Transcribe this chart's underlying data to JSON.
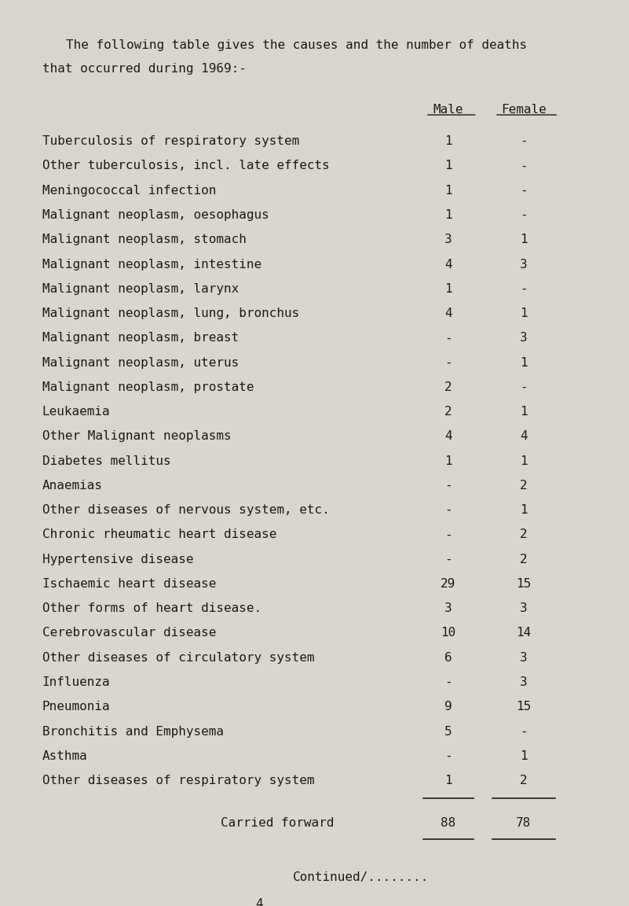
{
  "title_line1": "The following table gives the causes and the number of deaths",
  "title_line2": "that occurred during 1969:-",
  "col_header_male": "Male",
  "col_header_female": "Female",
  "rows": [
    {
      "cause": "Tuberculosis of respiratory system",
      "male": "1",
      "female": "-"
    },
    {
      "cause": "Other tuberculosis, incl. late effects",
      "male": "1",
      "female": "-"
    },
    {
      "cause": "Meningococcal infection",
      "male": "1",
      "female": "-"
    },
    {
      "cause": "Malignant neoplasm, oesophagus",
      "male": "1",
      "female": "-"
    },
    {
      "cause": "Malignant neoplasm, stomach",
      "male": "3",
      "female": "1"
    },
    {
      "cause": "Malignant neoplasm, intestine",
      "male": "4",
      "female": "3"
    },
    {
      "cause": "Malignant neoplasm, larynx",
      "male": "1",
      "female": "-"
    },
    {
      "cause": "Malignant neoplasm, lung, bronchus",
      "male": "4",
      "female": "1"
    },
    {
      "cause": "Malignant neoplasm, breast",
      "male": "-",
      "female": "3"
    },
    {
      "cause": "Malignant neoplasm, uterus",
      "male": "-",
      "female": "1"
    },
    {
      "cause": "Malignant neoplasm, prostate",
      "male": "2",
      "female": "-"
    },
    {
      "cause": "Leukaemia",
      "male": "2",
      "female": "1"
    },
    {
      "cause": "Other Malignant neoplasms",
      "male": "4",
      "female": "4"
    },
    {
      "cause": "Diabetes mellitus",
      "male": "1",
      "female": "1"
    },
    {
      "cause": "Anaemias",
      "male": "-",
      "female": "2"
    },
    {
      "cause": "Other diseases of nervous system, etc.",
      "male": "-",
      "female": "1"
    },
    {
      "cause": "Chronic rheumatic heart disease",
      "male": "-",
      "female": "2"
    },
    {
      "cause": "Hypertensive disease",
      "male": "-",
      "female": "2"
    },
    {
      "cause": "Ischaemic heart disease",
      "male": "29",
      "female": "15"
    },
    {
      "cause": "Other forms of heart disease.",
      "male": "3",
      "female": "3"
    },
    {
      "cause": "Cerebrovascular disease",
      "male": "10",
      "female": "14"
    },
    {
      "cause": "Other diseases of circulatory system",
      "male": "6",
      "female": "3"
    },
    {
      "cause": "Influenza",
      "male": "-",
      "female": "3"
    },
    {
      "cause": "Pneumonia",
      "male": "9",
      "female": "15"
    },
    {
      "cause": "Bronchitis and Emphysema",
      "male": "5",
      "female": "-"
    },
    {
      "cause": "Asthma",
      "male": "-",
      "female": "1"
    },
    {
      "cause": "Other diseases of respiratory system",
      "male": "1",
      "female": "2"
    }
  ],
  "total_label": "Carried forward",
  "total_male": "88",
  "total_female": "78",
  "footer": "Continued/........",
  "page_number": "4",
  "bg_color": "#d9d6ce",
  "text_color": "#1a1a1a",
  "font_size": 11.5,
  "title_font_size": 11.5,
  "header_font_size": 11.5
}
